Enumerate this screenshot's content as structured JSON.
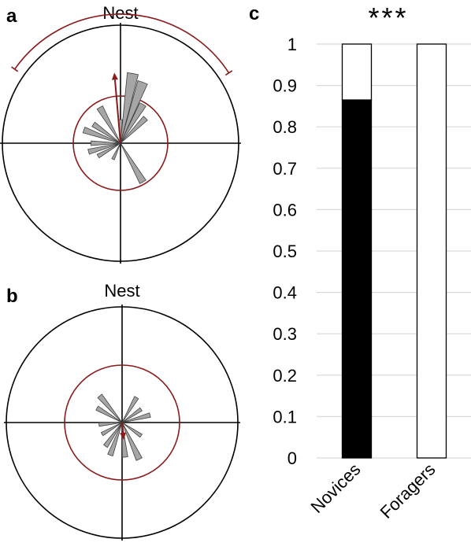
{
  "colors": {
    "circle": "#000000",
    "mean_circle": "#8b1a1a",
    "wedge_fill": "#a6a6a6",
    "wedge_stroke": "#404040",
    "bar_fill": "#000000",
    "gridline": "#d9d9d9"
  },
  "chart_data": [
    {
      "type": "rose",
      "panel_label": "a",
      "title": "Nest",
      "mean_vector": {
        "angle_deg": 355,
        "length": 0.6
      },
      "arc": {
        "from_deg": -55,
        "to_deg": 57
      },
      "bins": [
        {
          "angle_deg": 10,
          "value": 0.6
        },
        {
          "angle_deg": 20,
          "value": 0.55
        },
        {
          "angle_deg": 30,
          "value": 0.38
        },
        {
          "angle_deg": 45,
          "value": 0.3
        },
        {
          "angle_deg": 0,
          "value": 0.2
        },
        {
          "angle_deg": 150,
          "value": 0.38
        },
        {
          "angle_deg": 205,
          "value": 0.15
        },
        {
          "angle_deg": 240,
          "value": 0.22
        },
        {
          "angle_deg": 255,
          "value": 0.28
        },
        {
          "angle_deg": 270,
          "value": 0.25
        },
        {
          "angle_deg": 290,
          "value": 0.33
        },
        {
          "angle_deg": 305,
          "value": 0.28
        },
        {
          "angle_deg": 330,
          "value": 0.35
        }
      ]
    },
    {
      "type": "rose",
      "panel_label": "b",
      "title": "Nest",
      "mean_vector": {
        "angle_deg": 175,
        "length": 0.15
      },
      "bins": [
        {
          "angle_deg": 30,
          "value": 0.25
        },
        {
          "angle_deg": 55,
          "value": 0.2
        },
        {
          "angle_deg": 75,
          "value": 0.25
        },
        {
          "angle_deg": 125,
          "value": 0.2
        },
        {
          "angle_deg": 155,
          "value": 0.35
        },
        {
          "angle_deg": 175,
          "value": 0.3
        },
        {
          "angle_deg": 200,
          "value": 0.3
        },
        {
          "angle_deg": 215,
          "value": 0.25
        },
        {
          "angle_deg": 240,
          "value": 0.2
        },
        {
          "angle_deg": 265,
          "value": 0.2
        },
        {
          "angle_deg": 300,
          "value": 0.25
        },
        {
          "angle_deg": 320,
          "value": 0.3
        }
      ]
    },
    {
      "type": "bar",
      "panel_label": "c",
      "annotation": "***",
      "categories": [
        "Novices",
        "Foragers"
      ],
      "series": [
        {
          "values": [
            0.865,
            0
          ]
        },
        {
          "values": [
            0.135,
            1.0
          ]
        }
      ],
      "ylim": [
        0,
        1
      ],
      "yticks": [
        "0",
        "0.1",
        "0.2",
        "0.3",
        "0.4",
        "0.5",
        "0.6",
        "0.7",
        "0.8",
        "0.9",
        "1"
      ],
      "grid": true
    }
  ]
}
